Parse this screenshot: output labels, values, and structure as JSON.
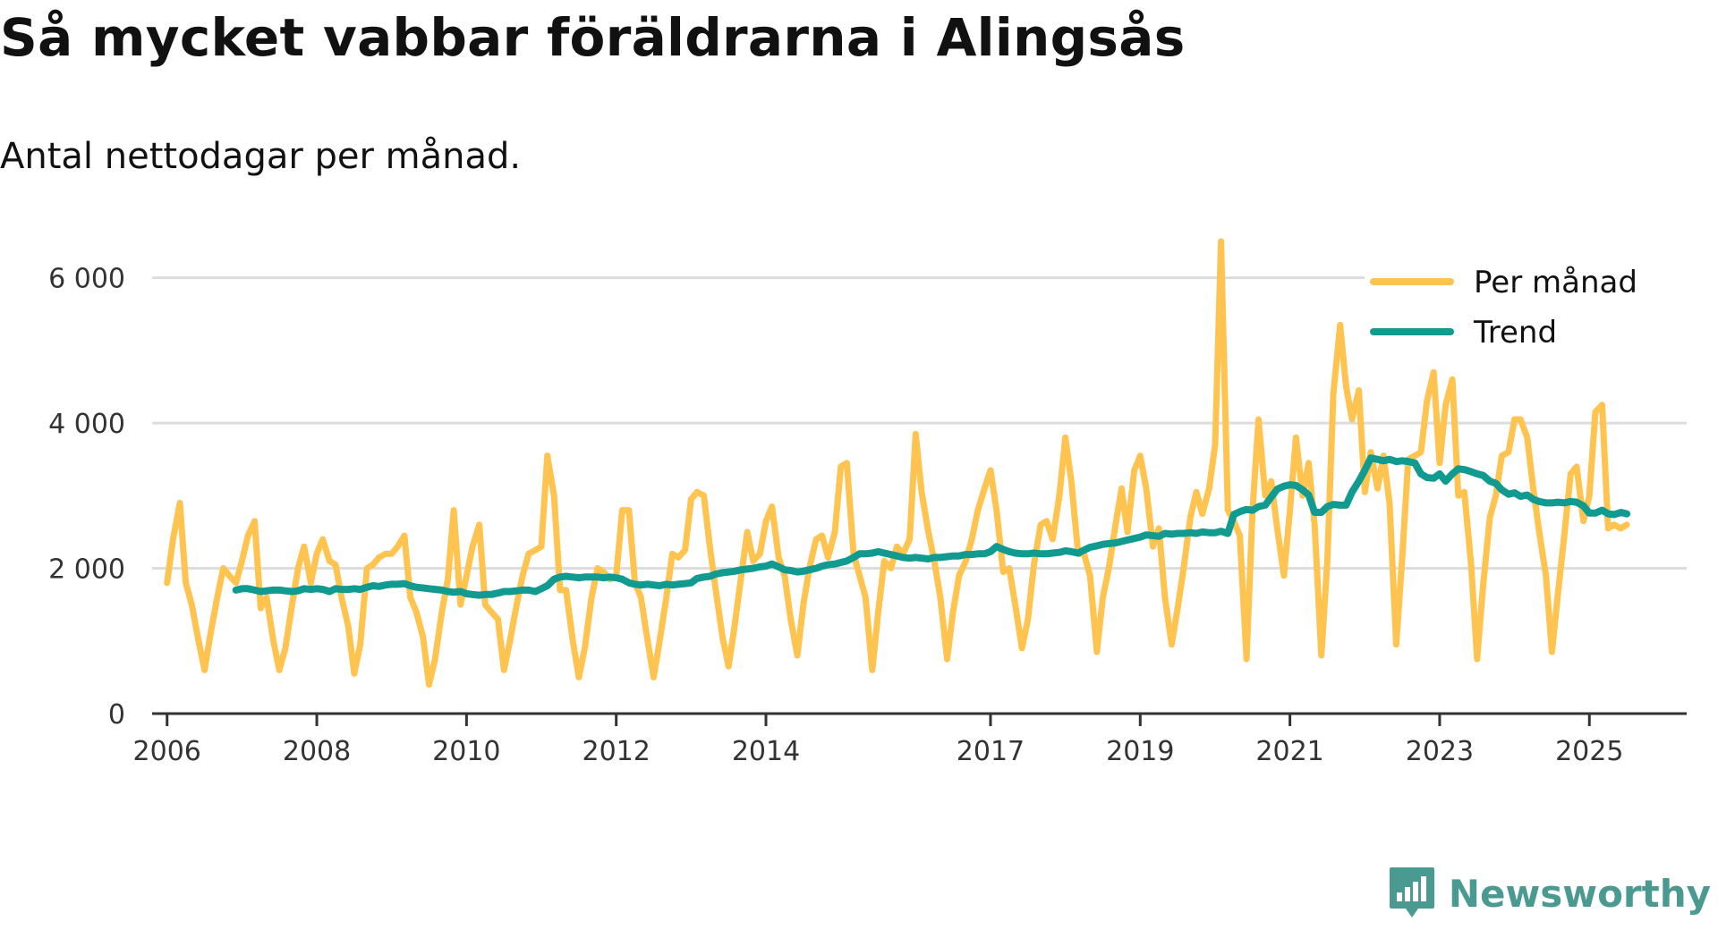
{
  "header": {
    "title": "Så mycket vabbar föräldrarna i Alingsås",
    "subtitle": "Antal nettodagar per månad."
  },
  "brand": {
    "name": "Newsworthy",
    "color": "#4a9a92"
  },
  "chart_data": {
    "type": "line",
    "title": "Så mycket vabbar föräldrarna i Alingsås",
    "subtitle": "Antal nettodagar per månad.",
    "xlabel": "",
    "ylabel": "",
    "ylim": [
      0,
      6500
    ],
    "yticks": [
      0,
      2000,
      4000,
      6000
    ],
    "ytick_labels": [
      "0",
      "2 000",
      "4 000",
      "6 000"
    ],
    "xlim": [
      2005.8,
      2026.3
    ],
    "xticks": [
      2006,
      2008,
      2010,
      2012,
      2014,
      2017,
      2019,
      2021,
      2023,
      2025
    ],
    "xtick_labels": [
      "2006",
      "2008",
      "2010",
      "2012",
      "2014",
      "2017",
      "2019",
      "2021",
      "2023",
      "2025"
    ],
    "grid": true,
    "legend": {
      "position": "top-right",
      "entries": [
        "Per månad",
        "Trend"
      ]
    },
    "series": [
      {
        "name": "Per månad",
        "color": "#ffc34f",
        "x": [
          2006.0,
          2006.08,
          2006.17,
          2006.25,
          2006.33,
          2006.42,
          2006.5,
          2006.58,
          2006.67,
          2006.75,
          2006.83,
          2006.92,
          2007.0,
          2007.08,
          2007.17,
          2007.25,
          2007.33,
          2007.42,
          2007.5,
          2007.58,
          2007.67,
          2007.75,
          2007.83,
          2007.92,
          2008.0,
          2008.08,
          2008.17,
          2008.25,
          2008.33,
          2008.42,
          2008.5,
          2008.58,
          2008.67,
          2008.75,
          2008.83,
          2008.92,
          2009.0,
          2009.08,
          2009.17,
          2009.25,
          2009.33,
          2009.42,
          2009.5,
          2009.58,
          2009.67,
          2009.75,
          2009.83,
          2009.92,
          2010.0,
          2010.08,
          2010.17,
          2010.25,
          2010.33,
          2010.42,
          2010.5,
          2010.58,
          2010.67,
          2010.75,
          2010.83,
          2010.92,
          2011.0,
          2011.08,
          2011.17,
          2011.25,
          2011.33,
          2011.42,
          2011.5,
          2011.58,
          2011.67,
          2011.75,
          2011.83,
          2011.92,
          2012.0,
          2012.08,
          2012.17,
          2012.25,
          2012.33,
          2012.42,
          2012.5,
          2012.58,
          2012.67,
          2012.75,
          2012.83,
          2012.92,
          2013.0,
          2013.08,
          2013.17,
          2013.25,
          2013.33,
          2013.42,
          2013.5,
          2013.58,
          2013.67,
          2013.75,
          2013.83,
          2013.92,
          2014.0,
          2014.08,
          2014.17,
          2014.25,
          2014.33,
          2014.42,
          2014.5,
          2014.58,
          2014.67,
          2014.75,
          2014.83,
          2014.92,
          2015.0,
          2015.08,
          2015.17,
          2015.25,
          2015.33,
          2015.42,
          2015.5,
          2015.58,
          2015.67,
          2015.75,
          2015.83,
          2015.92,
          2016.0,
          2016.08,
          2016.17,
          2016.25,
          2016.33,
          2016.42,
          2016.5,
          2016.58,
          2016.67,
          2016.75,
          2016.83,
          2016.92,
          2017.0,
          2017.08,
          2017.17,
          2017.25,
          2017.33,
          2017.42,
          2017.5,
          2017.58,
          2017.67,
          2017.75,
          2017.83,
          2017.92,
          2018.0,
          2018.08,
          2018.17,
          2018.25,
          2018.33,
          2018.42,
          2018.5,
          2018.58,
          2018.67,
          2018.75,
          2018.83,
          2018.92,
          2019.0,
          2019.08,
          2019.17,
          2019.25,
          2019.33,
          2019.42,
          2019.5,
          2019.58,
          2019.67,
          2019.75,
          2019.83,
          2019.92,
          2020.0,
          2020.08,
          2020.17,
          2020.25,
          2020.33,
          2020.42,
          2020.5,
          2020.58,
          2020.67,
          2020.75,
          2020.83,
          2020.92,
          2021.0,
          2021.08,
          2021.17,
          2021.25,
          2021.33,
          2021.42,
          2021.5,
          2021.58,
          2021.67,
          2021.75,
          2021.83,
          2021.92,
          2022.0,
          2022.08,
          2022.17,
          2022.25,
          2022.33,
          2022.42,
          2022.5,
          2022.58,
          2022.67,
          2022.75,
          2022.83,
          2022.92,
          2023.0,
          2023.08,
          2023.17,
          2023.25,
          2023.33,
          2023.42,
          2023.5,
          2023.58,
          2023.67,
          2023.75,
          2023.83,
          2023.92,
          2024.0,
          2024.08,
          2024.17,
          2024.25,
          2024.33,
          2024.42,
          2024.5,
          2024.58,
          2024.67,
          2024.75,
          2024.83,
          2024.92,
          2025.0,
          2025.08,
          2025.17,
          2025.25,
          2025.33,
          2025.42,
          2025.5
        ],
        "values": [
          1800,
          2400,
          2900,
          1800,
          1500,
          1000,
          600,
          1100,
          1600,
          2000,
          1900,
          1800,
          2100,
          2450,
          2650,
          1450,
          1600,
          1000,
          600,
          900,
          1500,
          2000,
          2300,
          1800,
          2200,
          2400,
          2100,
          2050,
          1600,
          1200,
          550,
          950,
          2000,
          2050,
          2150,
          2200,
          2200,
          2300,
          2450,
          1600,
          1400,
          1050,
          400,
          750,
          1400,
          1850,
          2800,
          1500,
          1900,
          2300,
          2600,
          1500,
          1400,
          1300,
          600,
          1000,
          1500,
          1900,
          2200,
          2250,
          2300,
          3550,
          3000,
          1700,
          1700,
          1000,
          500,
          900,
          1600,
          2000,
          1950,
          1850,
          1900,
          2800,
          2800,
          1800,
          1600,
          1000,
          500,
          1000,
          1600,
          2200,
          2150,
          2250,
          2950,
          3050,
          3000,
          2300,
          1700,
          1050,
          650,
          1200,
          1900,
          2500,
          2100,
          2200,
          2650,
          2850,
          2150,
          1900,
          1300,
          800,
          1500,
          2000,
          2400,
          2450,
          2150,
          2500,
          3400,
          3450,
          2200,
          1900,
          1600,
          600,
          1400,
          2100,
          2000,
          2300,
          2200,
          2400,
          3850,
          3050,
          2500,
          2100,
          1600,
          750,
          1400,
          1900,
          2100,
          2400,
          2800,
          3100,
          3350,
          2800,
          1950,
          2000,
          1500,
          900,
          1300,
          2050,
          2600,
          2650,
          2400,
          3000,
          3800,
          3200,
          2200,
          2200,
          1900,
          850,
          1600,
          2000,
          2600,
          3100,
          2500,
          3350,
          3550,
          3100,
          2300,
          2550,
          1600,
          950,
          1450,
          2000,
          2700,
          3050,
          2750,
          3100,
          3700,
          6500,
          2800,
          2650,
          2450,
          750,
          2800,
          4050,
          3000,
          3200,
          2550,
          1900,
          2800,
          3800,
          3000,
          3450,
          2600,
          800,
          2100,
          4400,
          5350,
          4500,
          4050,
          4450,
          3050,
          3600,
          3100,
          3550,
          2900,
          950,
          2150,
          3500,
          3550,
          3600,
          4300,
          4700,
          3450,
          4250,
          4600,
          3000,
          3050,
          2050,
          750,
          1750,
          2700,
          3000,
          3550,
          3600,
          4050,
          4050,
          3800,
          3100,
          2500,
          1900,
          850,
          1650,
          2500,
          3300,
          3400,
          2650,
          3000,
          4150,
          4250,
          2550,
          2600,
          2550,
          2600
        ]
      },
      {
        "name": "Trend",
        "color": "#119a8f",
        "x": [
          2006.92,
          2007.0,
          2007.08,
          2007.17,
          2007.25,
          2007.33,
          2007.42,
          2007.5,
          2007.58,
          2007.67,
          2007.75,
          2007.83,
          2007.92,
          2008.0,
          2008.08,
          2008.17,
          2008.25,
          2008.33,
          2008.42,
          2008.5,
          2008.58,
          2008.67,
          2008.75,
          2008.83,
          2008.92,
          2009.0,
          2009.08,
          2009.17,
          2009.25,
          2009.33,
          2009.42,
          2009.5,
          2009.58,
          2009.67,
          2009.75,
          2009.83,
          2009.92,
          2010.0,
          2010.08,
          2010.17,
          2010.25,
          2010.33,
          2010.42,
          2010.5,
          2010.58,
          2010.67,
          2010.75,
          2010.83,
          2010.92,
          2011.0,
          2011.08,
          2011.17,
          2011.25,
          2011.33,
          2011.42,
          2011.5,
          2011.58,
          2011.67,
          2011.75,
          2011.83,
          2011.92,
          2012.0,
          2012.08,
          2012.17,
          2012.25,
          2012.33,
          2012.42,
          2012.5,
          2012.58,
          2012.67,
          2012.75,
          2012.83,
          2012.92,
          2013.0,
          2013.08,
          2013.17,
          2013.25,
          2013.33,
          2013.42,
          2013.5,
          2013.58,
          2013.67,
          2013.75,
          2013.83,
          2013.92,
          2014.0,
          2014.08,
          2014.17,
          2014.25,
          2014.33,
          2014.42,
          2014.5,
          2014.58,
          2014.67,
          2014.75,
          2014.83,
          2014.92,
          2015.0,
          2015.08,
          2015.17,
          2015.25,
          2015.33,
          2015.42,
          2015.5,
          2015.58,
          2015.67,
          2015.75,
          2015.83,
          2015.92,
          2016.0,
          2016.08,
          2016.17,
          2016.25,
          2016.33,
          2016.42,
          2016.5,
          2016.58,
          2016.67,
          2016.75,
          2016.83,
          2016.92,
          2017.0,
          2017.08,
          2017.17,
          2017.25,
          2017.33,
          2017.42,
          2017.5,
          2017.58,
          2017.67,
          2017.75,
          2017.83,
          2017.92,
          2018.0,
          2018.08,
          2018.17,
          2018.25,
          2018.33,
          2018.42,
          2018.5,
          2018.58,
          2018.67,
          2018.75,
          2018.83,
          2018.92,
          2019.0,
          2019.08,
          2019.17,
          2019.25,
          2019.33,
          2019.42,
          2019.5,
          2019.58,
          2019.67,
          2019.75,
          2019.83,
          2019.92,
          2020.0,
          2020.08,
          2020.17,
          2020.25,
          2020.33,
          2020.42,
          2020.5,
          2020.58,
          2020.67,
          2020.75,
          2020.83,
          2020.92,
          2021.0,
          2021.08,
          2021.17,
          2021.25,
          2021.33,
          2021.42,
          2021.5,
          2021.58,
          2021.67,
          2021.75,
          2021.83,
          2021.92,
          2022.0,
          2022.08,
          2022.17,
          2022.25,
          2022.33,
          2022.42,
          2022.5,
          2022.58,
          2022.67,
          2022.75,
          2022.83,
          2022.92,
          2023.0,
          2023.08,
          2023.17,
          2023.25,
          2023.33,
          2023.42,
          2023.5,
          2023.58,
          2023.67,
          2023.75,
          2023.83,
          2023.92,
          2024.0,
          2024.08,
          2024.17,
          2024.25,
          2024.33,
          2024.42,
          2024.5,
          2024.58,
          2024.67,
          2024.75,
          2024.83,
          2024.92,
          2025.0,
          2025.08,
          2025.17,
          2025.25,
          2025.33,
          2025.42,
          2025.5
        ],
        "values": [
          1700,
          1720,
          1720,
          1700,
          1680,
          1690,
          1700,
          1700,
          1690,
          1680,
          1690,
          1720,
          1710,
          1720,
          1710,
          1680,
          1720,
          1710,
          1710,
          1720,
          1710,
          1740,
          1760,
          1750,
          1770,
          1780,
          1780,
          1790,
          1760,
          1740,
          1730,
          1720,
          1710,
          1700,
          1680,
          1670,
          1680,
          1650,
          1640,
          1630,
          1640,
          1640,
          1660,
          1680,
          1680,
          1690,
          1700,
          1700,
          1680,
          1720,
          1760,
          1850,
          1880,
          1890,
          1880,
          1870,
          1880,
          1880,
          1880,
          1870,
          1880,
          1870,
          1850,
          1800,
          1780,
          1770,
          1780,
          1770,
          1760,
          1780,
          1770,
          1780,
          1790,
          1800,
          1860,
          1880,
          1890,
          1920,
          1940,
          1950,
          1960,
          1980,
          1990,
          2000,
          2020,
          2030,
          2060,
          2020,
          1980,
          1970,
          1950,
          1960,
          1980,
          2000,
          2030,
          2050,
          2060,
          2080,
          2100,
          2150,
          2200,
          2200,
          2210,
          2230,
          2210,
          2190,
          2170,
          2150,
          2140,
          2150,
          2140,
          2130,
          2150,
          2150,
          2160,
          2170,
          2170,
          2190,
          2190,
          2200,
          2200,
          2230,
          2300,
          2260,
          2230,
          2210,
          2200,
          2200,
          2210,
          2200,
          2200,
          2210,
          2220,
          2240,
          2230,
          2210,
          2250,
          2290,
          2310,
          2330,
          2340,
          2350,
          2370,
          2390,
          2410,
          2430,
          2460,
          2450,
          2440,
          2480,
          2470,
          2480,
          2480,
          2490,
          2480,
          2500,
          2490,
          2490,
          2510,
          2480,
          2740,
          2780,
          2810,
          2800,
          2850,
          2870,
          2980,
          3090,
          3130,
          3150,
          3140,
          3080,
          3010,
          2770,
          2770,
          2850,
          2880,
          2870,
          2870,
          3050,
          3200,
          3350,
          3520,
          3500,
          3480,
          3500,
          3470,
          3480,
          3470,
          3450,
          3300,
          3250,
          3240,
          3300,
          3200,
          3300,
          3370,
          3360,
          3330,
          3300,
          3280,
          3200,
          3170,
          3080,
          3020,
          3040,
          2990,
          3010,
          2950,
          2920,
          2900,
          2900,
          2910,
          2900,
          2920,
          2910,
          2860,
          2760,
          2760,
          2800,
          2750,
          2740,
          2770,
          2750
        ]
      }
    ]
  }
}
